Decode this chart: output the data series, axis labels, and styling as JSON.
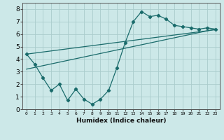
{
  "xlabel": "Humidex (Indice chaleur)",
  "bg_color": "#cce8e8",
  "grid_color": "#aacccc",
  "line_color": "#1a6b6b",
  "xlim": [
    -0.5,
    23.5
  ],
  "ylim": [
    0,
    8.5
  ],
  "xtick_vals": [
    0,
    1,
    2,
    3,
    4,
    5,
    6,
    7,
    8,
    9,
    10,
    11,
    12,
    13,
    14,
    15,
    16,
    17,
    18,
    19,
    20,
    21,
    22,
    23
  ],
  "xtick_labels": [
    "0",
    "1",
    "2",
    "3",
    "4",
    "5",
    "6",
    "7",
    "8",
    "9",
    "10",
    "11",
    "12",
    "13",
    "14",
    "15",
    "16",
    "17",
    "18",
    "19",
    "20",
    "21",
    "22",
    "23"
  ],
  "ytick_vals": [
    0,
    1,
    2,
    3,
    4,
    5,
    6,
    7,
    8
  ],
  "ytick_labels": [
    "0",
    "1",
    "2",
    "3",
    "4",
    "5",
    "6",
    "7",
    "8"
  ],
  "line1_x": [
    0,
    1,
    2,
    3,
    4,
    5,
    6,
    7,
    8,
    9,
    10,
    11,
    12,
    13,
    14,
    15,
    16,
    17,
    18,
    19,
    20,
    21,
    22,
    23
  ],
  "line1_y": [
    4.4,
    3.6,
    2.5,
    1.5,
    2.0,
    0.7,
    1.6,
    0.8,
    0.4,
    0.8,
    1.5,
    3.3,
    5.3,
    7.0,
    7.8,
    7.4,
    7.5,
    7.2,
    6.7,
    6.6,
    6.5,
    6.4,
    6.5,
    6.4
  ],
  "line2_x": [
    0,
    23
  ],
  "line2_y": [
    4.4,
    6.35
  ],
  "line3_x": [
    0,
    23
  ],
  "line3_y": [
    3.2,
    6.4
  ]
}
